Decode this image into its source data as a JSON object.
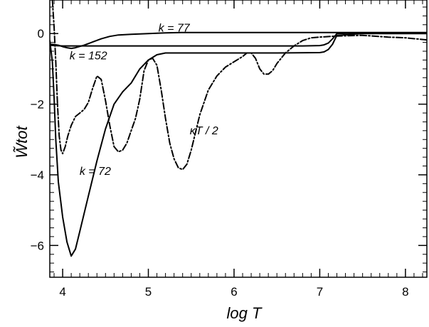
{
  "chart_data": {
    "type": "line",
    "xlabel": "log T",
    "ylabel": "W̃tot",
    "xlim": [
      3.85,
      8.25
    ],
    "ylim": [
      -6.9,
      0.95
    ],
    "grid": false,
    "xticks_major": [
      4,
      5,
      6,
      7,
      8
    ],
    "xticks_minor_step": 0.1,
    "yticks_major": [
      -6,
      -4,
      -2,
      0
    ],
    "yticks_minor_step": 0.25,
    "series": [
      {
        "name": "k = 77",
        "style": "solid",
        "x": [
          3.85,
          3.9,
          3.95,
          4.0,
          4.05,
          4.1,
          4.15,
          4.25,
          4.35,
          4.45,
          4.55,
          4.65,
          4.8,
          5.0,
          5.2,
          5.4,
          6.0,
          7.0,
          7.2,
          7.5,
          8.0,
          8.25
        ],
        "y": [
          -0.3,
          -0.31,
          -0.33,
          -0.37,
          -0.4,
          -0.42,
          -0.4,
          -0.33,
          -0.24,
          -0.15,
          -0.08,
          -0.04,
          -0.02,
          0.0,
          0.02,
          0.03,
          0.03,
          0.03,
          0.03,
          0.03,
          0.03,
          0.03
        ]
      },
      {
        "name": "k = 152",
        "style": "solid",
        "x": [
          3.85,
          3.9,
          4.0,
          4.2,
          5.0,
          6.0,
          6.8,
          7.0,
          7.05,
          7.1,
          7.15,
          7.2,
          7.5,
          8.0,
          8.25
        ],
        "y": [
          -0.33,
          -0.34,
          -0.35,
          -0.35,
          -0.35,
          -0.35,
          -0.35,
          -0.34,
          -0.32,
          -0.27,
          -0.15,
          0.0,
          0.02,
          0.02,
          0.02
        ]
      },
      {
        "name": "k = 72",
        "style": "solid",
        "x": [
          3.85,
          3.88,
          3.9,
          3.92,
          3.95,
          4.0,
          4.05,
          4.1,
          4.15,
          4.2,
          4.3,
          4.4,
          4.5,
          4.6,
          4.7,
          4.8,
          4.9,
          5.0,
          5.1,
          5.2,
          5.5,
          6.0,
          6.5,
          7.0,
          7.05,
          7.1,
          7.15,
          7.2,
          7.5,
          8.0,
          8.25
        ],
        "y": [
          -0.2,
          -0.8,
          -1.8,
          -3.0,
          -4.2,
          -5.2,
          -5.9,
          -6.3,
          -6.1,
          -5.6,
          -4.6,
          -3.6,
          -2.7,
          -2.0,
          -1.65,
          -1.4,
          -1.0,
          -0.75,
          -0.6,
          -0.55,
          -0.55,
          -0.55,
          -0.55,
          -0.54,
          -0.52,
          -0.45,
          -0.3,
          -0.05,
          0.0,
          0.0,
          0.0
        ]
      },
      {
        "name": "κT / 2",
        "style": "dashdot",
        "x": [
          3.88,
          3.9,
          3.92,
          3.94,
          3.96,
          3.98,
          4.0,
          4.03,
          4.06,
          4.1,
          4.15,
          4.2,
          4.25,
          4.3,
          4.35,
          4.4,
          4.45,
          4.5,
          4.55,
          4.6,
          4.65,
          4.7,
          4.75,
          4.8,
          4.85,
          4.9,
          4.95,
          5.0,
          5.05,
          5.1,
          5.15,
          5.2,
          5.25,
          5.3,
          5.35,
          5.4,
          5.45,
          5.5,
          5.55,
          5.6,
          5.7,
          5.8,
          5.9,
          6.0,
          6.1,
          6.15,
          6.2,
          6.25,
          6.3,
          6.35,
          6.4,
          6.45,
          6.5,
          6.6,
          6.7,
          6.8,
          6.9,
          7.0,
          7.2,
          7.5,
          7.8,
          8.0,
          8.25
        ],
        "y": [
          0.95,
          0.2,
          -0.8,
          -2.0,
          -2.9,
          -3.3,
          -3.4,
          -3.2,
          -2.9,
          -2.6,
          -2.35,
          -2.25,
          -2.15,
          -1.95,
          -1.55,
          -1.2,
          -1.3,
          -1.9,
          -2.6,
          -3.2,
          -3.35,
          -3.3,
          -3.1,
          -2.75,
          -2.4,
          -1.85,
          -1.05,
          -0.75,
          -0.7,
          -0.9,
          -1.6,
          -2.4,
          -3.1,
          -3.55,
          -3.8,
          -3.85,
          -3.7,
          -3.3,
          -2.8,
          -2.3,
          -1.6,
          -1.2,
          -0.95,
          -0.8,
          -0.65,
          -0.55,
          -0.55,
          -0.7,
          -1.0,
          -1.15,
          -1.15,
          -1.05,
          -0.85,
          -0.55,
          -0.35,
          -0.2,
          -0.12,
          -0.1,
          -0.07,
          -0.05,
          -0.1,
          -0.12,
          -0.18
        ]
      }
    ],
    "annotations": [
      {
        "text": "k = 77",
        "at": [
          5.3,
          0.05
        ]
      },
      {
        "text": "k = 152",
        "at": [
          4.3,
          -0.73
        ]
      },
      {
        "text": "k = 72",
        "at": [
          4.38,
          -4.0
        ]
      },
      {
        "text": "κT / 2",
        "at": [
          5.65,
          -2.85
        ]
      }
    ]
  }
}
